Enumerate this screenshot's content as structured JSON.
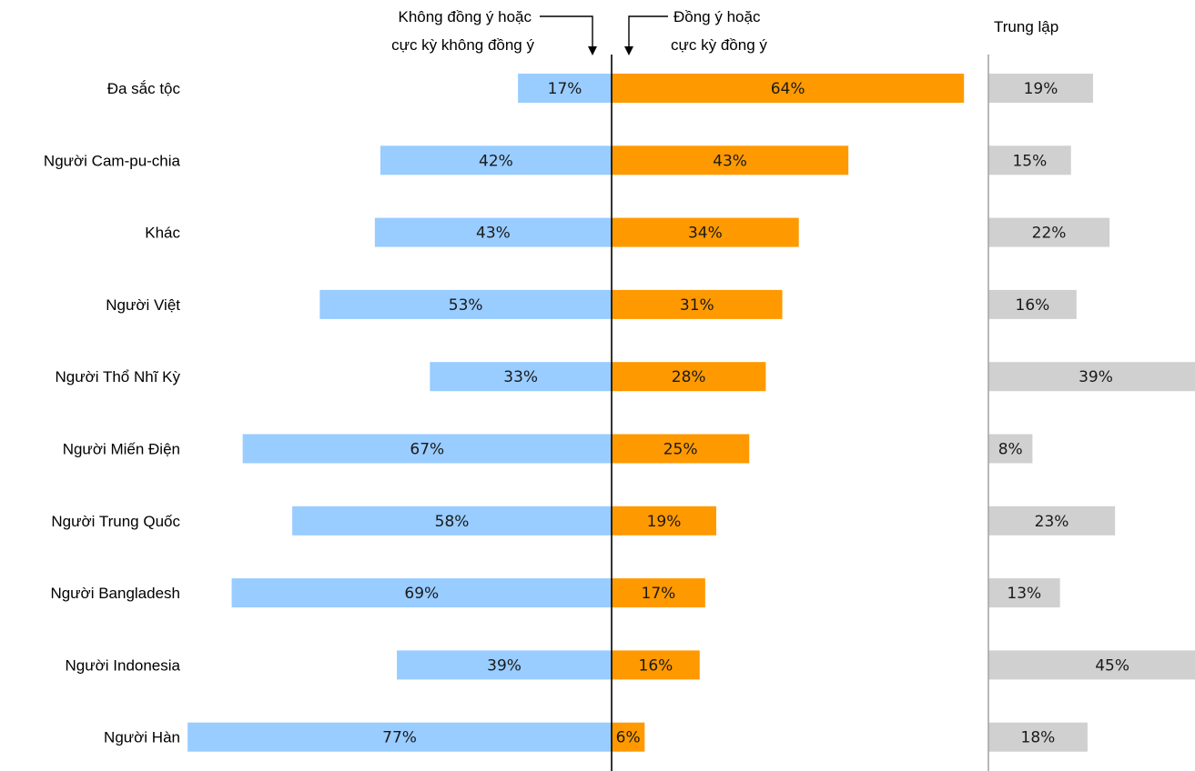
{
  "chart_data": {
    "type": "bar",
    "orientation": "horizontal-diverging",
    "categories": [
      "Đa sắc tộc",
      "Người Cam-pu-chia",
      "Khác",
      "Người Việt",
      "Người Thổ Nhĩ Kỳ",
      "Người Miến Điện",
      "Người Trung Quốc",
      "Người Bangladesh",
      "Người Indonesia",
      "Người Hàn"
    ],
    "series": [
      {
        "key": "disagree",
        "name_lines": [
          "Không đồng ý hoặc",
          "cực kỳ không đồng ý"
        ],
        "color": "#99ccff",
        "values": [
          17,
          42,
          43,
          53,
          33,
          67,
          58,
          69,
          39,
          77
        ]
      },
      {
        "key": "agree",
        "name_lines": [
          "Đồng ý hoặc",
          "cực kỳ đồng ý"
        ],
        "color": "#ff9900",
        "values": [
          64,
          43,
          34,
          31,
          28,
          25,
          19,
          17,
          16,
          6
        ]
      },
      {
        "key": "neutral",
        "name_lines": [
          "Trung lập"
        ],
        "color": "#d0d0d0",
        "values": [
          19,
          15,
          22,
          16,
          39,
          8,
          23,
          13,
          45,
          18
        ]
      }
    ],
    "value_suffix": "%",
    "axis_line_color": "#000000",
    "neutral_axis_color": "#a6a6a6"
  }
}
